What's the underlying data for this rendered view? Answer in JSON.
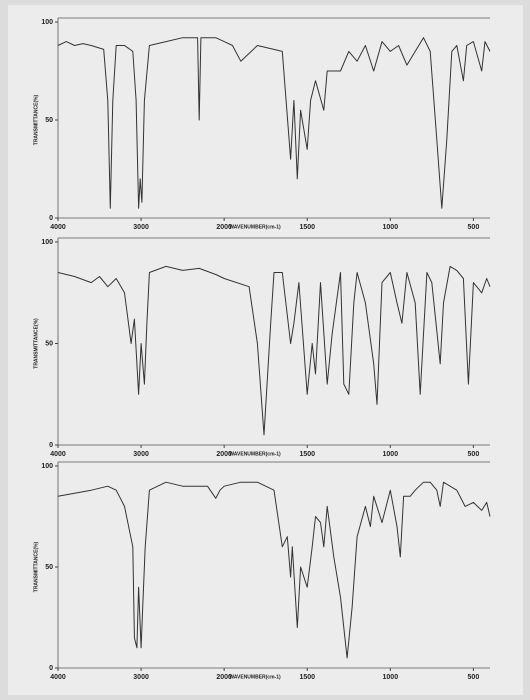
{
  "chart_data": [
    {
      "type": "line",
      "xlabel": "WAVENUMBER(cm-1)",
      "ylabel": "TRANSMITTANCE(%)",
      "color": "#333333",
      "xlim": [
        4000,
        400
      ],
      "xticks": [
        4000,
        3000,
        2000,
        1500,
        1000,
        500
      ],
      "ylim": [
        0,
        100
      ],
      "yticks": [
        0,
        50,
        100
      ],
      "x_break": 2000,
      "x_break_ratio": 2,
      "x": [
        4000,
        3900,
        3800,
        3700,
        3600,
        3450,
        3400,
        3370,
        3340,
        3300,
        3200,
        3100,
        3060,
        3030,
        3010,
        2990,
        2960,
        2900,
        2700,
        2500,
        2320,
        2300,
        2280,
        2100,
        2000,
        1950,
        1900,
        1800,
        1650,
        1600,
        1580,
        1560,
        1540,
        1500,
        1480,
        1450,
        1400,
        1380,
        1300,
        1250,
        1200,
        1150,
        1100,
        1050,
        1000,
        950,
        900,
        850,
        800,
        760,
        720,
        690,
        660,
        630,
        600,
        560,
        540,
        500,
        450,
        430,
        400
      ],
      "values": [
        88,
        90,
        88,
        89,
        88,
        86,
        60,
        5,
        60,
        88,
        88,
        85,
        60,
        5,
        20,
        8,
        60,
        88,
        90,
        92,
        92,
        50,
        92,
        92,
        90,
        88,
        80,
        88,
        85,
        30,
        60,
        20,
        55,
        35,
        60,
        70,
        55,
        75,
        75,
        85,
        80,
        88,
        75,
        90,
        85,
        88,
        78,
        85,
        92,
        85,
        40,
        5,
        40,
        85,
        88,
        70,
        88,
        90,
        75,
        90,
        85
      ]
    },
    {
      "type": "line",
      "xlabel": "WAVENUMBER(cm-1)",
      "ylabel": "TRANSMITTANCE(%)",
      "color": "#333333",
      "xlim": [
        4000,
        400
      ],
      "xticks": [
        4000,
        3000,
        2000,
        1500,
        1000,
        500
      ],
      "ylim": [
        0,
        100
      ],
      "yticks": [
        0,
        50,
        100
      ],
      "x_break": 2000,
      "x_break_ratio": 2,
      "x": [
        4000,
        3800,
        3600,
        3500,
        3400,
        3300,
        3200,
        3120,
        3080,
        3050,
        3030,
        3000,
        2960,
        2930,
        2900,
        2700,
        2500,
        2300,
        2100,
        2000,
        1850,
        1800,
        1760,
        1720,
        1700,
        1650,
        1600,
        1580,
        1550,
        1500,
        1470,
        1450,
        1420,
        1380,
        1350,
        1300,
        1280,
        1250,
        1220,
        1200,
        1150,
        1100,
        1080,
        1050,
        1000,
        960,
        930,
        900,
        850,
        820,
        780,
        750,
        700,
        680,
        640,
        600,
        560,
        530,
        500,
        450,
        420,
        400
      ],
      "values": [
        85,
        83,
        80,
        83,
        78,
        82,
        75,
        50,
        62,
        40,
        25,
        50,
        30,
        60,
        85,
        88,
        86,
        87,
        84,
        82,
        78,
        50,
        5,
        60,
        85,
        85,
        50,
        60,
        80,
        25,
        50,
        35,
        80,
        30,
        55,
        85,
        30,
        25,
        70,
        85,
        70,
        40,
        20,
        80,
        85,
        70,
        60,
        85,
        70,
        25,
        85,
        80,
        40,
        70,
        88,
        86,
        82,
        30,
        80,
        75,
        82,
        78
      ]
    },
    {
      "type": "line",
      "xlabel": "WAVENUMBER(cm-1)",
      "ylabel": "TRANSMITTANCE(%)",
      "color": "#333333",
      "xlim": [
        4000,
        400
      ],
      "xticks": [
        4000,
        3000,
        2000,
        1500,
        1000,
        500
      ],
      "ylim": [
        0,
        100
      ],
      "yticks": [
        0,
        50,
        100
      ],
      "x_break": 2000,
      "x_break_ratio": 2,
      "x": [
        4000,
        3600,
        3400,
        3300,
        3200,
        3100,
        3080,
        3050,
        3030,
        3000,
        2980,
        2950,
        2900,
        2700,
        2500,
        2300,
        2200,
        2100,
        2050,
        2000,
        1900,
        1800,
        1700,
        1650,
        1620,
        1600,
        1590,
        1560,
        1540,
        1500,
        1470,
        1450,
        1420,
        1400,
        1380,
        1340,
        1300,
        1260,
        1230,
        1200,
        1150,
        1120,
        1100,
        1050,
        1000,
        960,
        940,
        920,
        880,
        850,
        800,
        760,
        720,
        700,
        680,
        600,
        550,
        500,
        450,
        420,
        400
      ],
      "values": [
        85,
        88,
        90,
        88,
        80,
        60,
        15,
        10,
        40,
        10,
        30,
        60,
        88,
        92,
        90,
        90,
        90,
        84,
        88,
        90,
        92,
        92,
        88,
        60,
        65,
        45,
        60,
        20,
        50,
        40,
        60,
        75,
        72,
        60,
        80,
        55,
        35,
        5,
        30,
        65,
        80,
        70,
        85,
        72,
        88,
        70,
        55,
        85,
        85,
        88,
        92,
        92,
        88,
        80,
        92,
        88,
        80,
        82,
        78,
        82,
        75
      ]
    }
  ]
}
